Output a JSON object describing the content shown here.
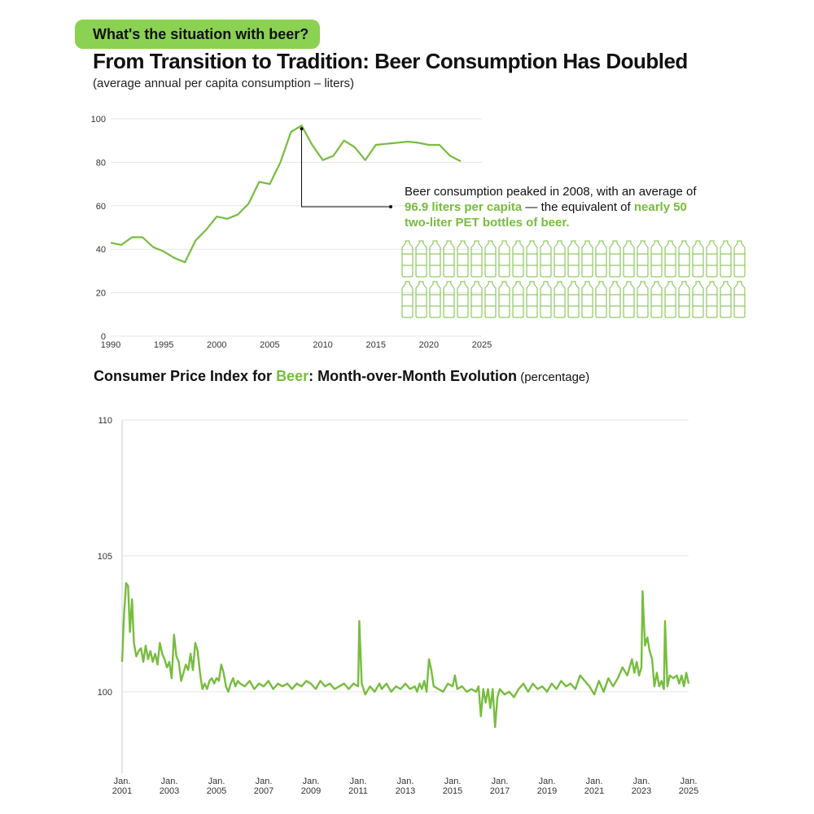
{
  "header": {
    "tag": "What's the situation with beer?",
    "title": "From Transition to Tradition: Beer Consumption Has Doubled",
    "subtitle": "(average annual per capita consumption – liters)"
  },
  "callout": {
    "text1": "Beer consumption peaked in 2008, with an average of ",
    "highlight1": "96.9 liters per capita",
    "text2": " — the equivalent of ",
    "highlight2": "nearly 50 two-liter PET bottles of beer."
  },
  "bottles": {
    "count": 50,
    "rows": 2,
    "per_row": 25,
    "icon": "pet-bottle-icon",
    "color": "#77bc3f"
  },
  "cpi_title": {
    "part1": "Consumer Price Index for ",
    "highlight": "Beer",
    "part2": ": Month-over-Month Evolution",
    "unit": " (percentage)"
  },
  "colors": {
    "accent": "#77bc3f",
    "tag_bg": "#8bd152",
    "grid": "#e6e6e6",
    "axis": "#cccccc"
  },
  "chart_data": [
    {
      "type": "line",
      "title": "From Transition to Tradition: Beer Consumption Has Doubled",
      "ylabel": "liters",
      "x": [
        1990,
        1991,
        1992,
        1993,
        1994,
        1995,
        1996,
        1997,
        1998,
        1999,
        2000,
        2001,
        2002,
        2003,
        2004,
        2005,
        2006,
        2007,
        2008,
        2009,
        2010,
        2011,
        2012,
        2013,
        2014,
        2015,
        2016,
        2017,
        2018,
        2019,
        2020,
        2021,
        2022,
        2023
      ],
      "series": [
        {
          "values": [
            43,
            42,
            45.5,
            45.5,
            41,
            39,
            36,
            34,
            44,
            49,
            55,
            54,
            56,
            61,
            71,
            70,
            80,
            94,
            96.9,
            88,
            81,
            83,
            90,
            87,
            81,
            88,
            88.5,
            89,
            89.5,
            89,
            88,
            88,
            83,
            80.5
          ]
        }
      ],
      "xlim": [
        1990,
        2025
      ],
      "ylim": [
        0,
        100
      ],
      "xticks": [
        "1990",
        "1995",
        "2000",
        "2005",
        "2010",
        "2015",
        "2020",
        "2025"
      ],
      "yticks": [
        "0",
        "20",
        "40",
        "60",
        "80",
        "100"
      ],
      "grid": true,
      "annotation": {
        "x": 2008,
        "y": 96.9
      }
    },
    {
      "type": "line",
      "title": "Consumer Price Index for Beer: Month-over-Month Evolution",
      "ylabel": "percentage",
      "xticks": [
        "Jan. 2001",
        "Jan. 2003",
        "Jan. 2005",
        "Jan. 2007",
        "Jan. 2009",
        "Jan. 2011",
        "Jan. 2013",
        "Jan. 2015",
        "Jan. 2017",
        "Jan. 2019",
        "Jan. 2021",
        "Jan. 2023",
        "Jan. 2025"
      ],
      "yticks": [
        "100",
        "105",
        "110"
      ],
      "ylim": [
        97,
        110
      ],
      "xlim": [
        2001,
        2025
      ],
      "grid": true,
      "series": [
        {
          "points": [
            [
              2001.0,
              101.1
            ],
            [
              2001.08,
              102.8
            ],
            [
              2001.17,
              104.0
            ],
            [
              2001.25,
              103.9
            ],
            [
              2001.33,
              102.2
            ],
            [
              2001.42,
              103.4
            ],
            [
              2001.5,
              101.8
            ],
            [
              2001.6,
              101.3
            ],
            [
              2001.7,
              101.5
            ],
            [
              2001.8,
              101.6
            ],
            [
              2001.9,
              101.1
            ],
            [
              2002.0,
              101.7
            ],
            [
              2002.1,
              101.2
            ],
            [
              2002.2,
              101.5
            ],
            [
              2002.3,
              101.1
            ],
            [
              2002.4,
              101.4
            ],
            [
              2002.5,
              101.0
            ],
            [
              2002.6,
              101.8
            ],
            [
              2002.7,
              101.4
            ],
            [
              2002.8,
              101.2
            ],
            [
              2002.9,
              100.9
            ],
            [
              2003.0,
              101.1
            ],
            [
              2003.1,
              100.5
            ],
            [
              2003.2,
              102.1
            ],
            [
              2003.3,
              101.3
            ],
            [
              2003.4,
              101.1
            ],
            [
              2003.5,
              100.4
            ],
            [
              2003.6,
              100.7
            ],
            [
              2003.7,
              101.0
            ],
            [
              2003.8,
              100.8
            ],
            [
              2003.9,
              101.4
            ],
            [
              2004.0,
              100.8
            ],
            [
              2004.1,
              101.8
            ],
            [
              2004.2,
              101.5
            ],
            [
              2004.3,
              100.7
            ],
            [
              2004.4,
              100.1
            ],
            [
              2004.5,
              100.3
            ],
            [
              2004.6,
              100.1
            ],
            [
              2004.7,
              100.4
            ],
            [
              2004.8,
              100.5
            ],
            [
              2004.9,
              100.3
            ],
            [
              2005.0,
              100.5
            ],
            [
              2005.1,
              100.4
            ],
            [
              2005.2,
              101.0
            ],
            [
              2005.3,
              100.7
            ],
            [
              2005.4,
              100.2
            ],
            [
              2005.5,
              100.0
            ],
            [
              2005.6,
              100.3
            ],
            [
              2005.7,
              100.5
            ],
            [
              2005.8,
              100.2
            ],
            [
              2005.9,
              100.4
            ],
            [
              2006.0,
              100.3
            ],
            [
              2006.2,
              100.2
            ],
            [
              2006.4,
              100.4
            ],
            [
              2006.6,
              100.1
            ],
            [
              2006.8,
              100.3
            ],
            [
              2007.0,
              100.2
            ],
            [
              2007.2,
              100.4
            ],
            [
              2007.4,
              100.1
            ],
            [
              2007.6,
              100.3
            ],
            [
              2007.8,
              100.2
            ],
            [
              2008.0,
              100.3
            ],
            [
              2008.2,
              100.1
            ],
            [
              2008.4,
              100.3
            ],
            [
              2008.6,
              100.2
            ],
            [
              2008.8,
              100.4
            ],
            [
              2009.0,
              100.3
            ],
            [
              2009.2,
              100.1
            ],
            [
              2009.4,
              100.4
            ],
            [
              2009.6,
              100.2
            ],
            [
              2009.8,
              100.3
            ],
            [
              2010.0,
              100.1
            ],
            [
              2010.2,
              100.2
            ],
            [
              2010.4,
              100.3
            ],
            [
              2010.6,
              100.1
            ],
            [
              2010.8,
              100.3
            ],
            [
              2011.0,
              100.2
            ],
            [
              2011.05,
              102.6
            ],
            [
              2011.15,
              100.3
            ],
            [
              2011.3,
              99.9
            ],
            [
              2011.5,
              100.2
            ],
            [
              2011.7,
              100.0
            ],
            [
              2011.9,
              100.3
            ],
            [
              2012.0,
              100.1
            ],
            [
              2012.2,
              100.3
            ],
            [
              2012.4,
              100.0
            ],
            [
              2012.6,
              100.2
            ],
            [
              2012.8,
              100.1
            ],
            [
              2013.0,
              100.3
            ],
            [
              2013.2,
              100.1
            ],
            [
              2013.4,
              100.2
            ],
            [
              2013.5,
              100.0
            ],
            [
              2013.6,
              100.3
            ],
            [
              2013.7,
              100.1
            ],
            [
              2013.8,
              100.4
            ],
            [
              2013.9,
              100.0
            ],
            [
              2014.0,
              101.2
            ],
            [
              2014.1,
              100.8
            ],
            [
              2014.2,
              100.2
            ],
            [
              2014.4,
              100.1
            ],
            [
              2014.6,
              100.0
            ],
            [
              2014.8,
              100.3
            ],
            [
              2015.0,
              100.2
            ],
            [
              2015.1,
              100.6
            ],
            [
              2015.2,
              100.1
            ],
            [
              2015.4,
              100.2
            ],
            [
              2015.6,
              100.0
            ],
            [
              2015.8,
              100.1
            ],
            [
              2016.0,
              100.0
            ],
            [
              2016.1,
              100.2
            ],
            [
              2016.2,
              99.1
            ],
            [
              2016.3,
              100.1
            ],
            [
              2016.4,
              99.6
            ],
            [
              2016.5,
              100.1
            ],
            [
              2016.6,
              99.4
            ],
            [
              2016.7,
              100.1
            ],
            [
              2016.8,
              98.7
            ],
            [
              2016.9,
              99.8
            ],
            [
              2017.0,
              100.1
            ],
            [
              2017.2,
              99.9
            ],
            [
              2017.4,
              100.0
            ],
            [
              2017.6,
              99.8
            ],
            [
              2017.8,
              100.1
            ],
            [
              2018.0,
              100.3
            ],
            [
              2018.2,
              100.0
            ],
            [
              2018.4,
              100.3
            ],
            [
              2018.6,
              100.1
            ],
            [
              2018.8,
              100.2
            ],
            [
              2019.0,
              100.0
            ],
            [
              2019.2,
              100.3
            ],
            [
              2019.4,
              100.1
            ],
            [
              2019.6,
              100.4
            ],
            [
              2019.8,
              100.2
            ],
            [
              2020.0,
              100.3
            ],
            [
              2020.2,
              100.1
            ],
            [
              2020.4,
              100.6
            ],
            [
              2020.6,
              100.4
            ],
            [
              2020.8,
              100.2
            ],
            [
              2021.0,
              99.9
            ],
            [
              2021.2,
              100.4
            ],
            [
              2021.4,
              100.0
            ],
            [
              2021.6,
              100.5
            ],
            [
              2021.8,
              100.2
            ],
            [
              2022.0,
              100.5
            ],
            [
              2022.2,
              100.9
            ],
            [
              2022.4,
              100.6
            ],
            [
              2022.6,
              101.2
            ],
            [
              2022.7,
              100.7
            ],
            [
              2022.8,
              101.1
            ],
            [
              2022.9,
              100.6
            ],
            [
              2023.0,
              100.9
            ],
            [
              2023.05,
              103.7
            ],
            [
              2023.15,
              101.7
            ],
            [
              2023.25,
              102.0
            ],
            [
              2023.35,
              101.5
            ],
            [
              2023.45,
              101.2
            ],
            [
              2023.55,
              100.2
            ],
            [
              2023.65,
              100.7
            ],
            [
              2023.75,
              100.2
            ],
            [
              2023.85,
              100.4
            ],
            [
              2023.95,
              100.1
            ],
            [
              2024.0,
              102.6
            ],
            [
              2024.1,
              100.2
            ],
            [
              2024.2,
              100.6
            ],
            [
              2024.35,
              100.5
            ],
            [
              2024.5,
              100.6
            ],
            [
              2024.6,
              100.3
            ],
            [
              2024.7,
              100.6
            ],
            [
              2024.8,
              100.2
            ],
            [
              2024.9,
              100.7
            ],
            [
              2025.0,
              100.3
            ]
          ]
        }
      ]
    }
  ]
}
